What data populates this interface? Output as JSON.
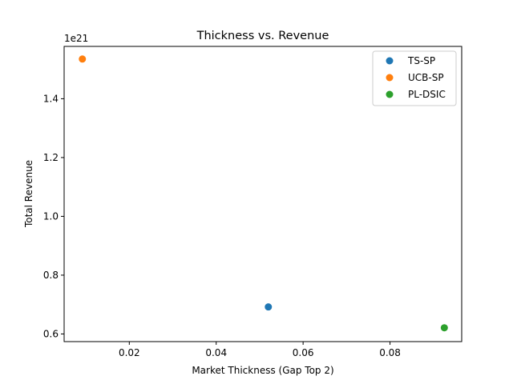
{
  "chart_data": {
    "type": "scatter",
    "title": "Thickness vs. Revenue",
    "xlabel": "Market Thickness (Gap Top 2)",
    "ylabel": "Total Revenue",
    "y_offset_text": "1e21",
    "xlim": [
      0.005,
      0.0965
    ],
    "ylim": [
      0.574,
      1.578
    ],
    "x_ticks": [
      0.02,
      0.04,
      0.06,
      0.08
    ],
    "x_tick_labels": [
      "0.02",
      "0.04",
      "0.06",
      "0.08"
    ],
    "y_ticks": [
      0.6,
      0.8,
      1.0,
      1.2,
      1.4
    ],
    "y_tick_labels": [
      "0.6",
      "0.8",
      "1.0",
      "1.2",
      "1.4"
    ],
    "grid": false,
    "legend_position": "upper-right",
    "series": [
      {
        "name": "TS-SP",
        "color": "#1f77b4",
        "x": [
          0.052
        ],
        "y": [
          0.692
        ]
      },
      {
        "name": "UCB-SP",
        "color": "#ff7f0e",
        "x": [
          0.0092
        ],
        "y": [
          1.535
        ]
      },
      {
        "name": "PL-DSIC",
        "color": "#2ca02c",
        "x": [
          0.0925
        ],
        "y": [
          0.621
        ]
      }
    ]
  }
}
